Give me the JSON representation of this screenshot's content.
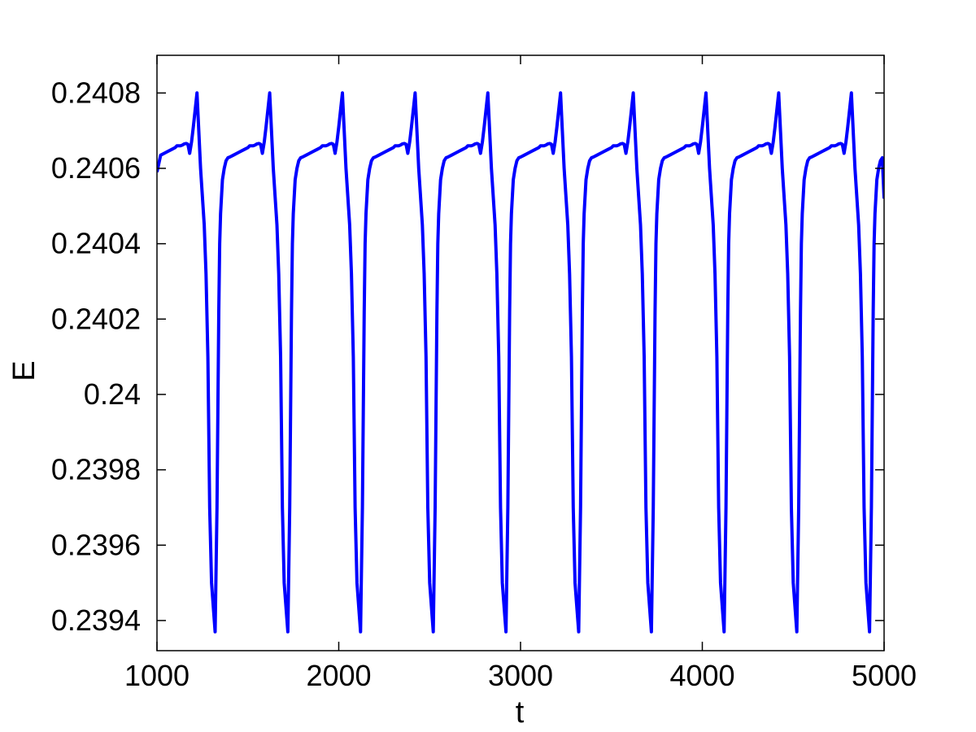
{
  "chart_data": {
    "type": "line",
    "title": "",
    "xlabel": "t",
    "ylabel": "E",
    "xlim": [
      1000,
      5000
    ],
    "ylim": [
      0.23932,
      0.2409
    ],
    "grid": false,
    "legend": "none",
    "x_ticks": [
      1000,
      2000,
      3000,
      4000,
      5000
    ],
    "x_tick_labels": [
      "1000",
      "2000",
      "3000",
      "4000",
      "5000"
    ],
    "y_ticks": [
      0.2394,
      0.2396,
      0.2398,
      0.24,
      0.2402,
      0.2404,
      0.2406,
      0.2408
    ],
    "y_tick_labels": [
      "0.2394",
      "0.2396",
      "0.2398",
      "0.24",
      "0.2402",
      "0.2404",
      "0.2406",
      "0.2408"
    ],
    "line_color": "#0000ff",
    "period": 400,
    "cycle_shape": {
      "t_offset": [
        0,
        10,
        20,
        40,
        60,
        80,
        90,
        100,
        110,
        120,
        140,
        150,
        160,
        165,
        170,
        180,
        190,
        200,
        210,
        220,
        240,
        260,
        280,
        300,
        320,
        330,
        340,
        350,
        360,
        370,
        380,
        390,
        400
      ],
      "E": [
        0.24064,
        0.24067,
        0.24071,
        0.2408,
        0.2406,
        0.24045,
        0.24032,
        0.2401,
        0.2397,
        0.2395,
        0.23937,
        0.2397,
        0.24022,
        0.2404,
        0.24048,
        0.24057,
        0.2406,
        0.24062,
        0.240628,
        0.24063,
        0.240635,
        0.24064,
        0.240645,
        0.24065,
        0.240655,
        0.24066,
        0.24066,
        0.24066,
        0.240662,
        0.240665,
        0.240666,
        0.240664,
        0.24064
      ]
    },
    "first_peak_t": 1220,
    "series": [
      {
        "start": {
          "t": 1000,
          "E": 0.24059
        },
        "end": {
          "t": 5000,
          "E": 0.24052
        }
      }
    ]
  }
}
